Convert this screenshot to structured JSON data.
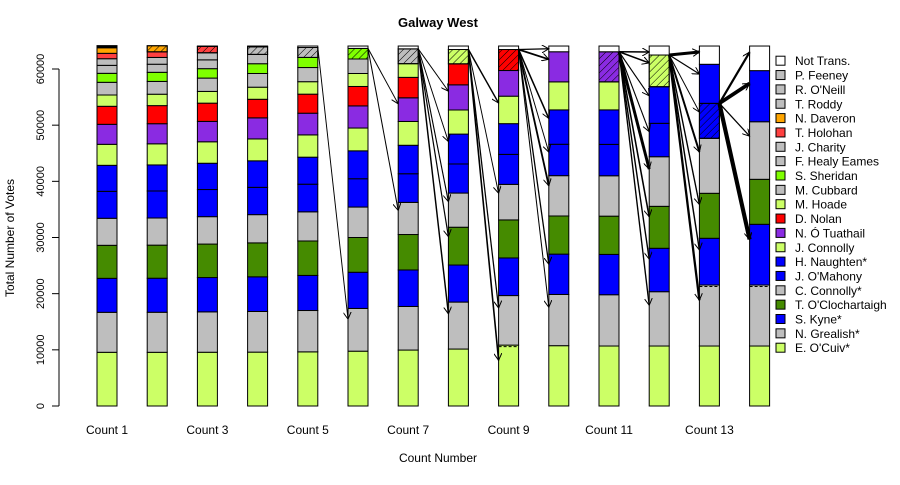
{
  "chart_data": {
    "type": "bar",
    "stacked": true,
    "title": "Galway West",
    "xlabel": "Count Number",
    "ylabel": "Total Number of Votes",
    "ylim": [
      0,
      64500
    ],
    "y_ticks": [
      0,
      10000,
      20000,
      30000,
      40000,
      50000,
      60000
    ],
    "x_tick_labels": [
      {
        "count": 1,
        "label": "Count 1"
      },
      {
        "count": 3,
        "label": "Count 3"
      },
      {
        "count": 5,
        "label": "Count 5"
      },
      {
        "count": 7,
        "label": "Count 7"
      },
      {
        "count": 9,
        "label": "Count 9"
      },
      {
        "count": 11,
        "label": "Count 11"
      },
      {
        "count": 13,
        "label": "Count 13"
      }
    ],
    "legend_position": "right",
    "candidates": [
      {
        "name": "E. O'Cuiv*",
        "color": "#CCFF66"
      },
      {
        "name": "N. Grealish*",
        "color": "#BEBEBE"
      },
      {
        "name": "S. Kyne*",
        "color": "#0000FF"
      },
      {
        "name": "T. O'Clochartaigh",
        "color": "#458B00"
      },
      {
        "name": "C. Connolly*",
        "color": "#BEBEBE"
      },
      {
        "name": "J. O'Mahony",
        "color": "#0000FF"
      },
      {
        "name": "H. Naughten*",
        "color": "#0000FF"
      },
      {
        "name": "J. Connolly",
        "color": "#CCFF66"
      },
      {
        "name": "N. Ó Tuathail",
        "color": "#8A2BE2"
      },
      {
        "name": "D. Nolan",
        "color": "#FF0000"
      },
      {
        "name": "M. Hoade",
        "color": "#CCFF66"
      },
      {
        "name": "M. Cubbard",
        "color": "#BEBEBE"
      },
      {
        "name": "S. Sheridan",
        "color": "#7FFF00"
      },
      {
        "name": "F. Healy Eames",
        "color": "#BEBEBE"
      },
      {
        "name": "J. Charity",
        "color": "#BEBEBE"
      },
      {
        "name": "T. Holohan",
        "color": "#FF4040"
      },
      {
        "name": "N. Daveron",
        "color": "#FFA500"
      },
      {
        "name": "T. Roddy",
        "color": "#BEBEBE"
      },
      {
        "name": "R. O'Neill",
        "color": "#BEBEBE"
      },
      {
        "name": "P. Feeney",
        "color": "#BEBEBE"
      },
      {
        "name": "Not Trans.",
        "color": "#FFFFFF"
      }
    ],
    "counts": [
      {
        "count": 1,
        "eliminated": [
          17,
          18,
          19
        ],
        "values": [
          9560,
          7120,
          6050,
          5880,
          4810,
          4800,
          4630,
          3740,
          3560,
          3210,
          2010,
          2260,
          1600,
          1420,
          1180,
          960,
          1000,
          150,
          130,
          70,
          0
        ]
      },
      {
        "count": 2,
        "eliminated": [
          16
        ],
        "values": [
          9560,
          7130,
          6060,
          5890,
          4830,
          4810,
          4640,
          3760,
          3580,
          3220,
          2030,
          2280,
          1620,
          1440,
          1210,
          1000,
          1080,
          0,
          0,
          0,
          0
        ]
      },
      {
        "count": 3,
        "eliminated": [
          15
        ],
        "values": [
          9570,
          7190,
          6110,
          5960,
          4880,
          4830,
          4680,
          3820,
          3630,
          3250,
          2090,
          2370,
          1680,
          1570,
          1260,
          1130,
          0,
          0,
          0,
          0,
          70
        ]
      },
      {
        "count": 4,
        "eliminated": [
          14
        ],
        "values": [
          9590,
          7240,
          6170,
          6040,
          5030,
          4860,
          4720,
          3900,
          3750,
          3310,
          2150,
          2440,
          1740,
          1660,
          1350,
          0,
          0,
          0,
          0,
          0,
          140
        ]
      },
      {
        "count": 5,
        "eliminated": [
          13
        ],
        "values": [
          9640,
          7360,
          6250,
          6130,
          5190,
          4920,
          4810,
          3970,
          3860,
          3390,
          2220,
          2520,
          1800,
          1770,
          0,
          0,
          0,
          0,
          0,
          0,
          260
        ]
      },
      {
        "count": 6,
        "eliminated": [
          12
        ],
        "values": [
          9760,
          7610,
          6440,
          6190,
          5420,
          5040,
          4970,
          4060,
          3940,
          3460,
          2310,
          2580,
          1890,
          0,
          0,
          0,
          0,
          0,
          0,
          0,
          420
        ]
      },
      {
        "count": 7,
        "eliminated": [
          11
        ],
        "values": [
          9960,
          7760,
          6500,
          6310,
          5720,
          5100,
          5070,
          4240,
          4210,
          3640,
          2440,
          2640,
          0,
          0,
          0,
          0,
          0,
          0,
          0,
          0,
          500
        ]
      },
      {
        "count": 8,
        "eliminated": [
          10
        ],
        "values": [
          10140,
          8360,
          6600,
          6730,
          6080,
          5180,
          5320,
          4290,
          4480,
          3740,
          2550,
          0,
          0,
          0,
          0,
          0,
          0,
          0,
          0,
          0,
          620
        ]
      },
      {
        "count": 9,
        "eliminated": [
          9
        ],
        "elected": [
          0
        ],
        "values": [
          10840,
          8820,
          6700,
          6770,
          6330,
          5340,
          5470,
          4890,
          4570,
          3740,
          0,
          0,
          0,
          0,
          0,
          0,
          0,
          0,
          0,
          0,
          620
        ]
      },
      {
        "count": 10,
        "eliminated": [],
        "values": [
          10740,
          9120,
          7180,
          6790,
          7180,
          5590,
          6120,
          4990,
          5360,
          0,
          0,
          0,
          0,
          0,
          0,
          0,
          0,
          0,
          0,
          0,
          1020
        ]
      },
      {
        "count": 11,
        "eliminated": [
          8
        ],
        "values": [
          10680,
          9130,
          7180,
          6810,
          7190,
          5590,
          6140,
          4990,
          5360,
          0,
          0,
          0,
          0,
          0,
          0,
          0,
          0,
          0,
          0,
          0,
          1020
        ]
      },
      {
        "count": 12,
        "eliminated": [
          7
        ],
        "values": [
          10680,
          9670,
          7730,
          7470,
          8830,
          5950,
          6520,
          5640,
          0,
          0,
          0,
          0,
          0,
          0,
          0,
          0,
          0,
          0,
          0,
          0,
          1600
        ]
      },
      {
        "count": 13,
        "eliminated": [
          5
        ],
        "elected": [
          1
        ],
        "values": [
          10680,
          10860,
          8320,
          8010,
          9790,
          6230,
          6950,
          0,
          0,
          0,
          0,
          0,
          0,
          0,
          0,
          0,
          0,
          0,
          0,
          0,
          3250
        ]
      },
      {
        "count": 14,
        "eliminated": [],
        "elected": [
          1
        ],
        "values": [
          10680,
          10860,
          10810,
          8010,
          10250,
          0,
          9100,
          0,
          0,
          0,
          0,
          0,
          0,
          0,
          0,
          0,
          0,
          0,
          0,
          0,
          4380
        ]
      }
    ]
  }
}
